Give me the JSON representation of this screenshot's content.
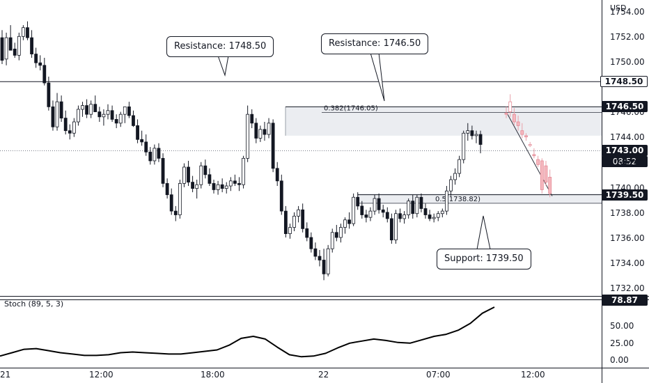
{
  "currency": "USD",
  "chart_data": {
    "type": "candlestick",
    "y_axis": {
      "range": [
        1731.5,
        1755.0
      ],
      "ticks": [
        "1754.00",
        "1752.00",
        "1750.00",
        "1746.00",
        "1744.00",
        "1742.00",
        "1740.00",
        "1738.00",
        "1736.00",
        "1734.00",
        "1732.00"
      ]
    },
    "x_axis": {
      "ticks": [
        "21",
        "12:00",
        "18:00",
        "22",
        "07:00",
        "12:00"
      ]
    },
    "series": [
      {
        "type": "candles",
        "values": [
          [
            1752.0,
            1752.6,
            1749.9,
            1750.2
          ],
          [
            1750.3,
            1752.4,
            1749.8,
            1752.0
          ],
          [
            1752.0,
            1753.0,
            1751.5,
            1751.0
          ],
          [
            1751.1,
            1751.6,
            1750.4,
            1750.6
          ],
          [
            1750.6,
            1752.4,
            1750.2,
            1752.1
          ],
          [
            1752.1,
            1753.0,
            1751.8,
            1752.8
          ],
          [
            1752.8,
            1753.3,
            1751.8,
            1752.0
          ],
          [
            1752.0,
            1752.6,
            1750.4,
            1750.7
          ],
          [
            1750.7,
            1751.2,
            1749.6,
            1750.0
          ],
          [
            1750.0,
            1750.6,
            1749.4,
            1749.8
          ],
          [
            1749.8,
            1750.4,
            1748.2,
            1748.4
          ],
          [
            1748.4,
            1748.9,
            1746.2,
            1746.5
          ],
          [
            1746.5,
            1747.0,
            1744.6,
            1744.9
          ],
          [
            1744.9,
            1747.6,
            1744.6,
            1746.9
          ],
          [
            1746.9,
            1747.4,
            1745.3,
            1745.6
          ],
          [
            1745.6,
            1746.2,
            1744.3,
            1744.6
          ],
          [
            1744.6,
            1745.1,
            1743.9,
            1744.4
          ],
          [
            1744.4,
            1745.6,
            1744.1,
            1745.3
          ],
          [
            1745.3,
            1746.6,
            1745.0,
            1746.3
          ],
          [
            1746.3,
            1746.9,
            1745.7,
            1746.6
          ],
          [
            1746.6,
            1747.1,
            1745.6,
            1745.9
          ],
          [
            1745.9,
            1747.0,
            1745.6,
            1746.7
          ],
          [
            1746.7,
            1747.4,
            1746.3,
            1746.1
          ],
          [
            1746.1,
            1746.5,
            1745.3,
            1745.7
          ],
          [
            1745.7,
            1746.3,
            1745.0,
            1745.9
          ],
          [
            1745.9,
            1746.7,
            1745.5,
            1746.2
          ],
          [
            1746.2,
            1746.6,
            1745.3,
            1745.5
          ],
          [
            1745.5,
            1745.9,
            1744.8,
            1745.2
          ],
          [
            1745.2,
            1746.1,
            1744.9,
            1745.9
          ],
          [
            1745.9,
            1746.3,
            1745.2,
            1746.5
          ],
          [
            1746.5,
            1746.9,
            1745.6,
            1745.8
          ],
          [
            1745.8,
            1746.2,
            1744.9,
            1745.0
          ],
          [
            1745.0,
            1745.5,
            1743.6,
            1743.9
          ],
          [
            1743.9,
            1744.6,
            1743.4,
            1743.7
          ],
          [
            1743.7,
            1744.3,
            1742.6,
            1742.9
          ],
          [
            1742.9,
            1743.3,
            1741.9,
            1742.2
          ],
          [
            1742.2,
            1743.5,
            1741.9,
            1743.2
          ],
          [
            1743.2,
            1743.6,
            1742.1,
            1742.4
          ],
          [
            1742.4,
            1742.8,
            1740.1,
            1740.4
          ],
          [
            1740.4,
            1740.8,
            1739.2,
            1739.5
          ],
          [
            1739.5,
            1740.0,
            1737.9,
            1738.2
          ],
          [
            1738.2,
            1738.6,
            1737.4,
            1737.9
          ],
          [
            1737.9,
            1740.7,
            1737.6,
            1740.4
          ],
          [
            1740.4,
            1742.0,
            1740.1,
            1741.7
          ],
          [
            1741.7,
            1742.2,
            1740.2,
            1740.5
          ],
          [
            1740.5,
            1741.0,
            1739.7,
            1740.0
          ],
          [
            1740.0,
            1740.7,
            1739.2,
            1740.3
          ],
          [
            1740.3,
            1742.1,
            1740.0,
            1741.8
          ],
          [
            1741.8,
            1742.3,
            1740.8,
            1741.1
          ],
          [
            1741.1,
            1741.6,
            1740.2,
            1740.4
          ],
          [
            1740.4,
            1740.7,
            1739.6,
            1739.9
          ],
          [
            1739.9,
            1740.6,
            1739.5,
            1740.3
          ],
          [
            1740.3,
            1740.8,
            1739.7,
            1740.0
          ],
          [
            1740.0,
            1740.5,
            1739.6,
            1740.2
          ],
          [
            1740.2,
            1740.9,
            1739.8,
            1740.6
          ],
          [
            1740.6,
            1741.1,
            1740.2,
            1740.4
          ],
          [
            1740.4,
            1740.9,
            1739.8,
            1740.3
          ],
          [
            1740.3,
            1742.6,
            1740.0,
            1742.4
          ],
          [
            1742.4,
            1746.6,
            1742.1,
            1745.9
          ],
          [
            1745.9,
            1746.3,
            1744.8,
            1745.2
          ],
          [
            1745.2,
            1745.6,
            1743.6,
            1744.0
          ],
          [
            1744.0,
            1745.0,
            1743.7,
            1744.7
          ],
          [
            1744.7,
            1745.3,
            1743.8,
            1744.3
          ],
          [
            1744.3,
            1745.6,
            1744.0,
            1745.2
          ],
          [
            1745.2,
            1745.5,
            1741.3,
            1741.6
          ],
          [
            1741.6,
            1742.1,
            1740.2,
            1740.6
          ],
          [
            1740.6,
            1741.1,
            1737.9,
            1738.2
          ],
          [
            1738.2,
            1738.6,
            1736.1,
            1736.4
          ],
          [
            1736.4,
            1737.2,
            1736.0,
            1736.9
          ],
          [
            1736.9,
            1738.1,
            1736.6,
            1737.8
          ],
          [
            1737.8,
            1738.6,
            1737.3,
            1738.3
          ],
          [
            1738.3,
            1738.8,
            1736.5,
            1736.8
          ],
          [
            1736.8,
            1737.3,
            1735.8,
            1736.1
          ],
          [
            1736.1,
            1736.5,
            1734.9,
            1735.2
          ],
          [
            1735.2,
            1735.7,
            1734.3,
            1734.6
          ],
          [
            1734.6,
            1735.1,
            1733.8,
            1734.3
          ],
          [
            1734.3,
            1735.2,
            1732.7,
            1733.2
          ],
          [
            1733.2,
            1735.5,
            1733.0,
            1735.2
          ],
          [
            1735.2,
            1736.8,
            1734.9,
            1736.5
          ],
          [
            1736.5,
            1737.1,
            1735.8,
            1736.1
          ],
          [
            1736.1,
            1737.2,
            1735.7,
            1736.9
          ],
          [
            1736.9,
            1737.7,
            1736.4,
            1737.5
          ],
          [
            1737.5,
            1738.1,
            1736.8,
            1737.2
          ],
          [
            1737.2,
            1739.6,
            1737.0,
            1739.3
          ],
          [
            1739.3,
            1739.7,
            1738.3,
            1738.6
          ],
          [
            1738.6,
            1739.0,
            1737.6,
            1737.9
          ],
          [
            1737.9,
            1738.3,
            1737.3,
            1737.7
          ],
          [
            1737.7,
            1738.5,
            1737.4,
            1738.2
          ],
          [
            1738.2,
            1739.5,
            1737.9,
            1739.2
          ],
          [
            1739.2,
            1739.6,
            1738.0,
            1738.3
          ],
          [
            1738.3,
            1738.7,
            1737.7,
            1738.1
          ],
          [
            1738.1,
            1738.5,
            1737.3,
            1737.6
          ],
          [
            1737.6,
            1738.0,
            1735.6,
            1735.9
          ],
          [
            1735.9,
            1738.3,
            1735.6,
            1738.0
          ],
          [
            1738.0,
            1738.4,
            1737.3,
            1737.6
          ],
          [
            1737.6,
            1738.2,
            1737.2,
            1737.9
          ],
          [
            1737.9,
            1739.2,
            1737.6,
            1739.0
          ],
          [
            1739.0,
            1739.5,
            1737.6,
            1738.0
          ],
          [
            1738.0,
            1739.5,
            1737.7,
            1739.3
          ],
          [
            1739.3,
            1739.6,
            1738.1,
            1738.4
          ],
          [
            1738.4,
            1738.8,
            1737.6,
            1737.9
          ],
          [
            1737.9,
            1738.3,
            1737.4,
            1737.6
          ],
          [
            1737.6,
            1738.0,
            1737.3,
            1737.7
          ],
          [
            1737.7,
            1738.2,
            1737.4,
            1738.0
          ],
          [
            1738.0,
            1738.4,
            1737.7,
            1738.2
          ],
          [
            1738.2,
            1740.2,
            1737.9,
            1739.8
          ],
          [
            1739.8,
            1741.0,
            1739.4,
            1740.7
          ],
          [
            1740.7,
            1741.6,
            1740.3,
            1741.2
          ],
          [
            1741.2,
            1742.6,
            1740.9,
            1742.3
          ],
          [
            1742.3,
            1744.6,
            1742.0,
            1744.4
          ],
          [
            1744.4,
            1745.2,
            1743.8,
            1744.6
          ],
          [
            1744.6,
            1745.0,
            1743.9,
            1744.2
          ],
          [
            1744.2,
            1744.6,
            1743.6,
            1744.3
          ],
          [
            1744.3,
            1744.6,
            1742.8,
            1743.5
          ]
        ]
      },
      {
        "type": "projected-candles",
        "values": [
          [
            1746.0,
            1746.5,
            1745.6,
            1745.9
          ],
          [
            1746.1,
            1747.5,
            1745.7,
            1746.9
          ],
          [
            1745.9,
            1746.4,
            1745.0,
            1745.3
          ],
          [
            1745.3,
            1745.8,
            1744.6,
            1745.0
          ],
          [
            1744.6,
            1745.2,
            1744.0,
            1744.3
          ],
          [
            1744.2,
            1744.4,
            1743.8,
            1744.1
          ],
          [
            1743.5,
            1743.7,
            1743.3,
            1743.5
          ],
          [
            1742.7,
            1743.2,
            1742.4,
            1742.6
          ],
          [
            1742.3,
            1742.6,
            1741.7,
            1741.9
          ],
          [
            1742.2,
            1742.4,
            1739.6,
            1739.9
          ],
          [
            1741.8,
            1742.2,
            1740.2,
            1740.5
          ],
          [
            1740.9,
            1741.5,
            1739.3,
            1739.6
          ]
        ]
      },
      {
        "type": "stochastic",
        "name": "Stoch (89, 5, 3)",
        "values": [
          7,
          12,
          17,
          18,
          15,
          12,
          10,
          8,
          8,
          9,
          12,
          13,
          12,
          11,
          10,
          10,
          12,
          14,
          16,
          23,
          33,
          36,
          32,
          20,
          9,
          6,
          7,
          11,
          19,
          26,
          29,
          32,
          30,
          27,
          26,
          31,
          36,
          39,
          45,
          55,
          70,
          79
        ]
      }
    ],
    "levels": [
      {
        "label": "Resistance: 1748.50",
        "value": 1748.5
      },
      {
        "label": "Resistance: 1746.50",
        "value": 1746.5
      },
      {
        "label": "Support: 1739.50",
        "value": 1739.5
      }
    ],
    "fibonacci": [
      {
        "label": "0.382(1746.05)",
        "value": 1746.05
      },
      {
        "label": "0.5(1738.82)",
        "value": 1738.82
      }
    ],
    "zones": [
      {
        "from": 1744.2,
        "to": 1746.5
      },
      {
        "from": 1738.8,
        "to": 1739.6
      }
    ],
    "current_price": {
      "value": 1743.0,
      "value_label": "1743.00",
      "countdown": "08:52"
    },
    "price_tags": [
      {
        "label": "1748.50",
        "value": 1748.5
      },
      {
        "label": "1746.50",
        "value": 1746.5
      },
      {
        "label": "1739.50",
        "value": 1739.5
      }
    ],
    "stochastic_panel": {
      "title": "Stoch (89, 5, 3)",
      "last_value": "78.87",
      "range": [
        -8,
        80
      ],
      "ticks": [
        "50.00",
        "25.00",
        "0.00"
      ]
    },
    "grid": false
  }
}
